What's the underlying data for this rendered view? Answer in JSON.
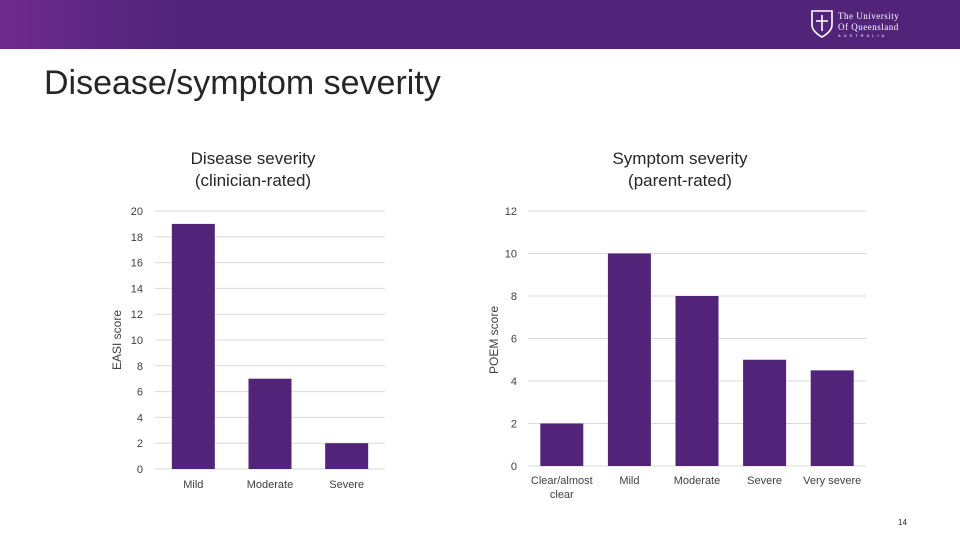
{
  "header": {
    "logo_line1": "The University",
    "logo_line2": "Of Queensland",
    "logo_line3": "AUSTRALIA"
  },
  "page": {
    "title": "Disease/symptom severity",
    "number": "14"
  },
  "colors": {
    "brand_purple": "#51247a",
    "bar": "#51247a",
    "grid": "#d9d9d9",
    "text": "#404040"
  },
  "chart_data": [
    {
      "id": "disease",
      "type": "bar",
      "title_line1": "Disease severity",
      "title_line2": "(clinician-rated)",
      "xlabel": "",
      "ylabel": "EASI score",
      "ylim": [
        0,
        20
      ],
      "yticks": [
        0,
        2,
        4,
        6,
        8,
        10,
        12,
        14,
        16,
        18,
        20
      ],
      "categories": [
        "Mild",
        "Moderate",
        "Severe"
      ],
      "values": [
        19,
        7,
        2
      ]
    },
    {
      "id": "symptom",
      "type": "bar",
      "title_line1": "Symptom severity",
      "title_line2": "(parent-rated)",
      "xlabel": "",
      "ylabel": "POEM score",
      "ylim": [
        0,
        12
      ],
      "yticks": [
        0,
        2,
        4,
        6,
        8,
        10,
        12
      ],
      "categories": [
        "Clear/almost clear",
        "Mild",
        "Moderate",
        "Severe",
        "Very severe"
      ],
      "values": [
        2,
        10,
        8,
        5,
        4.5
      ]
    }
  ]
}
